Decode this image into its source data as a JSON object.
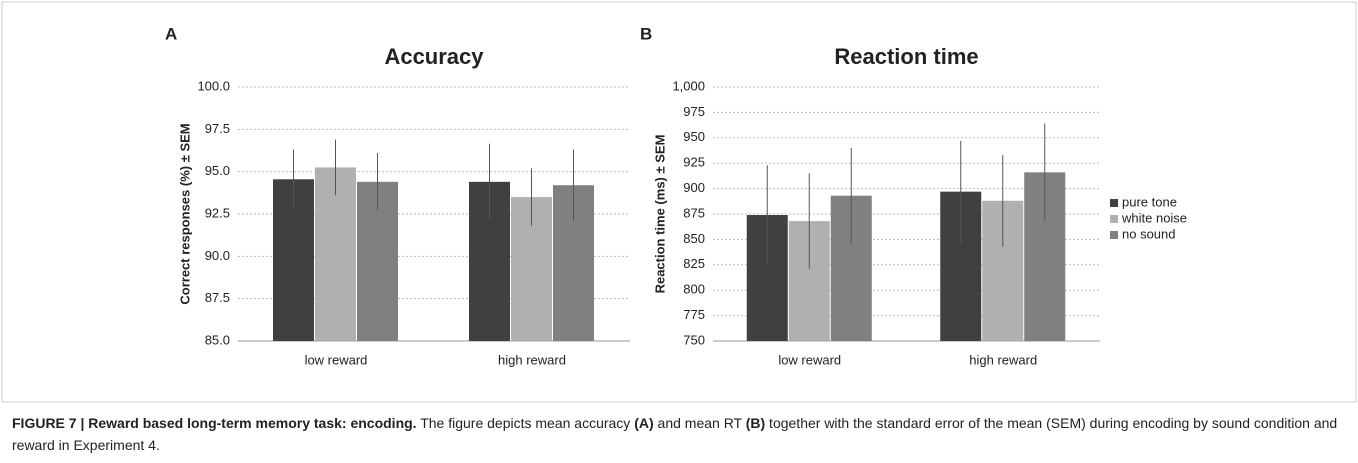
{
  "charts_caption": [
    {
      "text": "FIGURE 7 | Reward based long-term memory task: encoding.",
      "bold": true
    },
    {
      "text": " The figure depicts mean accuracy ",
      "bold": false
    },
    {
      "text": "(A)",
      "bold": true
    },
    {
      "text": " and mean RT ",
      "bold": false
    },
    {
      "text": "(B)",
      "bold": true
    },
    {
      "text": " together with the standard error of the mean (SEM) during encoding by sound condition and reward in Experiment 4.",
      "bold": false
    }
  ],
  "chart_data": [
    {
      "type": "bar",
      "panel": "A",
      "title": "Accuracy",
      "y_label": "Correct responses (%) ± SEM",
      "categories": [
        "low reward",
        "high reward"
      ],
      "series": [
        {
          "color": "#404040",
          "values": [
            94.55,
            94.4
          ],
          "errors": [
            1.75,
            2.25
          ]
        },
        {
          "color": "#b0b0b0",
          "values": [
            95.25,
            93.5
          ],
          "errors": [
            1.65,
            1.7
          ]
        },
        {
          "color": "#808080",
          "values": [
            94.4,
            94.2
          ],
          "errors": [
            1.7,
            2.1
          ]
        }
      ],
      "ylim": [
        85,
        100
      ],
      "yticks": [
        {
          "value": 85,
          "label": "85.0"
        },
        87.5,
        {
          "value": 90,
          "label": "90.0"
        },
        92.5,
        {
          "value": 95,
          "label": "95.0"
        },
        97.5,
        {
          "value": 100,
          "label": "100.0"
        }
      ],
      "grid": true
    },
    {
      "type": "bar",
      "panel": "B",
      "title": "Reaction time",
      "y_label": "Reaction time (ms) ± SEM",
      "categories": [
        "low reward",
        "high reward"
      ],
      "series": [
        {
          "name": "pure tone",
          "color": "#404040",
          "values": [
            874,
            897
          ],
          "errors": [
            49,
            50
          ]
        },
        {
          "name": "white noise",
          "color": "#b0b0b0",
          "values": [
            868,
            888
          ],
          "errors": [
            47,
            45
          ]
        },
        {
          "name": "no sound",
          "color": "#808080",
          "values": [
            893,
            916
          ],
          "errors": [
            47,
            48
          ]
        }
      ],
      "ylim": [
        750,
        1000
      ],
      "yticks": [
        750,
        775,
        800,
        825,
        850,
        875,
        900,
        925,
        950,
        975,
        {
          "value": 1000,
          "label": "1,000"
        }
      ],
      "grid": true,
      "legend": "right"
    }
  ]
}
